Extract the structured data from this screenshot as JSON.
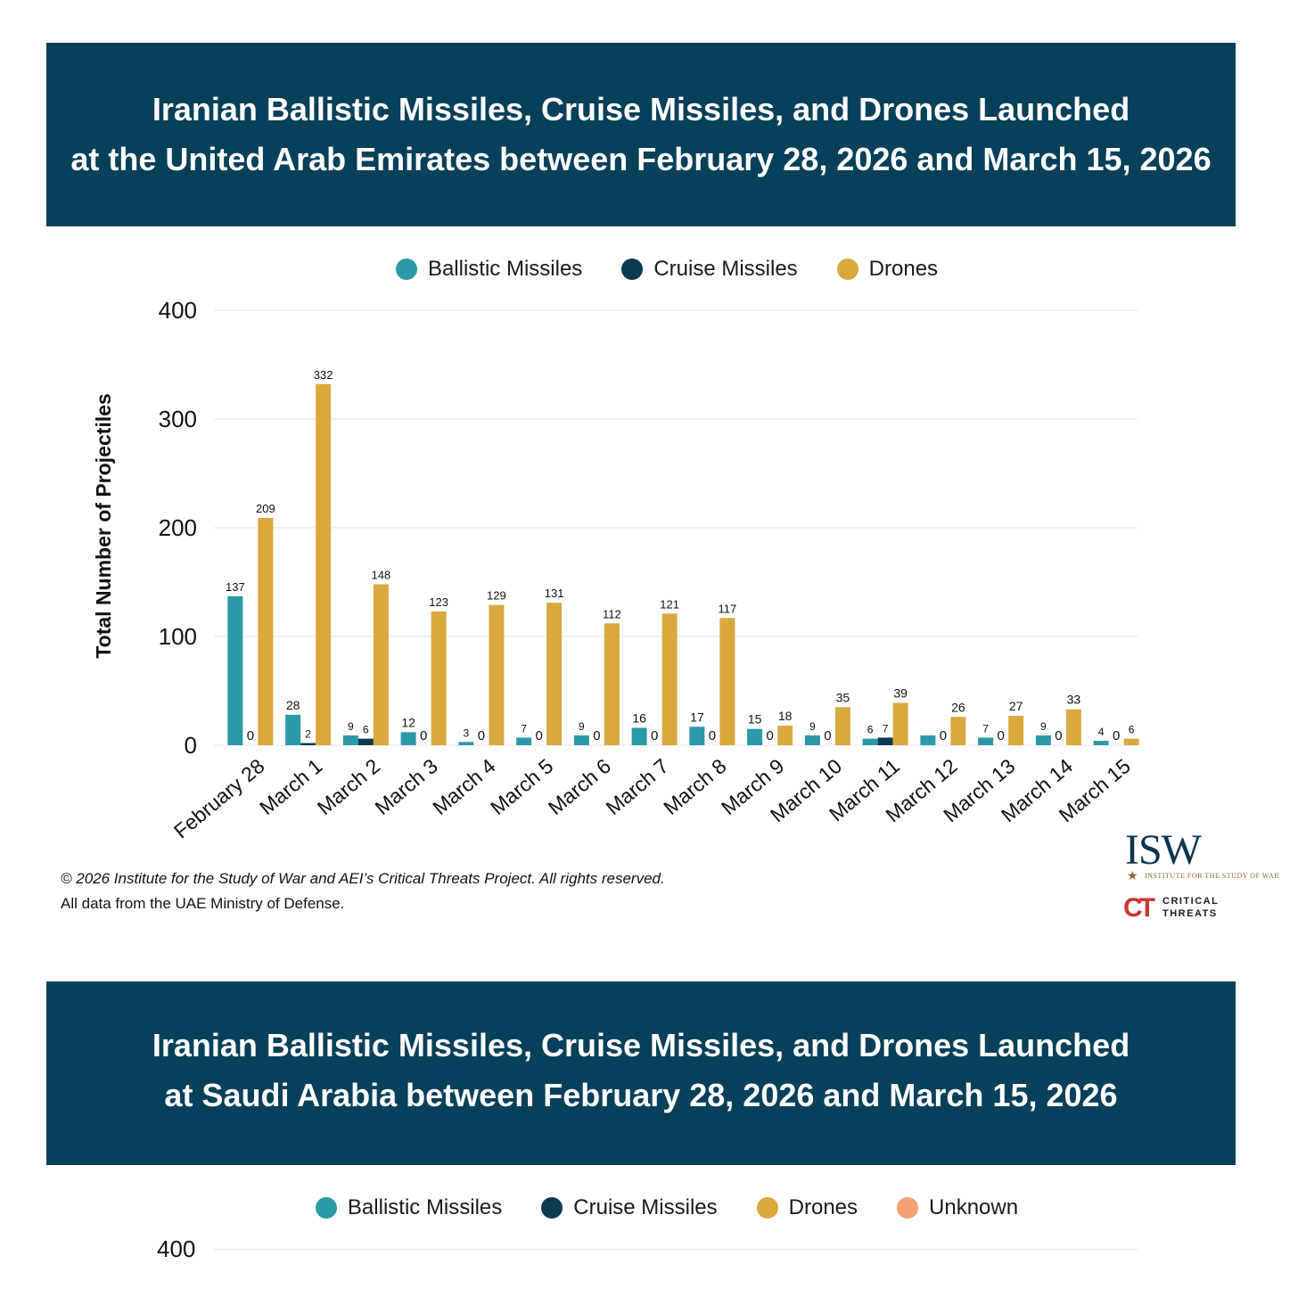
{
  "banner1": {
    "line1": "Iranian Ballistic Missiles, Cruise Missiles, and Drones Launched",
    "line2": "at the United Arab Emirates between February 28, 2026 and March 15, 2026"
  },
  "legend1": [
    {
      "label": "Ballistic Missiles",
      "color": "#2a9aa8"
    },
    {
      "label": "Cruise Missiles",
      "color": "#0b3a52"
    },
    {
      "label": "Drones",
      "color": "#daa93e"
    }
  ],
  "chart_data": {
    "type": "bar",
    "title": "Iranian Ballistic Missiles, Cruise Missiles, and Drones Launched at the United Arab Emirates between February 28, 2026 and March 15, 2026",
    "ylabel": "Total Number of Projectiles",
    "xlabel": "",
    "ylim": [
      0,
      400
    ],
    "yticks": [
      0,
      100,
      200,
      300,
      400
    ],
    "grid": true,
    "legend_position": "top-center",
    "categories": [
      "February 28",
      "March 1",
      "March 2",
      "March 3",
      "March 4",
      "March 5",
      "March 6",
      "March 7",
      "March 8",
      "March 9",
      "March 10",
      "March 11",
      "March 12",
      "March 13",
      "March 14",
      "March 15"
    ],
    "series": [
      {
        "name": "Ballistic Missiles",
        "color": "#2a9aa8",
        "values": [
          137,
          28,
          9,
          12,
          3,
          7,
          9,
          16,
          17,
          15,
          9,
          6,
          9,
          7,
          9,
          4
        ],
        "labels": [
          "137",
          "28",
          "9",
          "12",
          "3",
          "7",
          "9",
          "16",
          "17",
          "15",
          "9",
          "6",
          "",
          "7",
          "9",
          "4"
        ]
      },
      {
        "name": "Cruise Missiles",
        "color": "#0b3a52",
        "values": [
          0,
          2,
          6,
          0,
          0,
          0,
          0,
          0,
          0,
          0,
          0,
          7,
          0,
          0,
          0,
          0
        ],
        "labels": [
          "0",
          "2",
          "6",
          "0",
          "0",
          "0",
          "0",
          "0",
          "0",
          "0",
          "0",
          "7",
          "0",
          "0",
          "0",
          "0"
        ]
      },
      {
        "name": "Drones",
        "color": "#daa93e",
        "values": [
          209,
          332,
          148,
          123,
          129,
          131,
          112,
          121,
          117,
          18,
          35,
          39,
          26,
          27,
          33,
          6
        ],
        "labels": [
          "209",
          "332",
          "148",
          "123",
          "129",
          "131",
          "112",
          "121",
          "117",
          "18",
          "35",
          "39",
          "26",
          "27",
          "33",
          "6"
        ]
      }
    ]
  },
  "footer": {
    "copyright": "© 2026 Institute for the Study of War and AEI’s Critical Threats Project. All rights reserved.",
    "source": "All data from the UAE Ministry of Defense."
  },
  "logos": {
    "isw": "ISW",
    "isw_sub": "INSTITUTE FOR THE STUDY OF WAR",
    "ct_mark": "CT",
    "ct_line1": "CRITICAL",
    "ct_line2": "THREATS"
  },
  "banner2": {
    "line1": "Iranian Ballistic Missiles, Cruise Missiles, and Drones Launched",
    "line2": "at Saudi Arabia between February 28, 2026 and March 15, 2026"
  },
  "legend2": [
    {
      "label": "Ballistic Missiles",
      "color": "#2a9aa8"
    },
    {
      "label": "Cruise Missiles",
      "color": "#0b3a52"
    },
    {
      "label": "Drones",
      "color": "#daa93e"
    },
    {
      "label": "Unknown",
      "color": "#f7a072"
    }
  ],
  "chart2": {
    "top_tick": "400"
  }
}
